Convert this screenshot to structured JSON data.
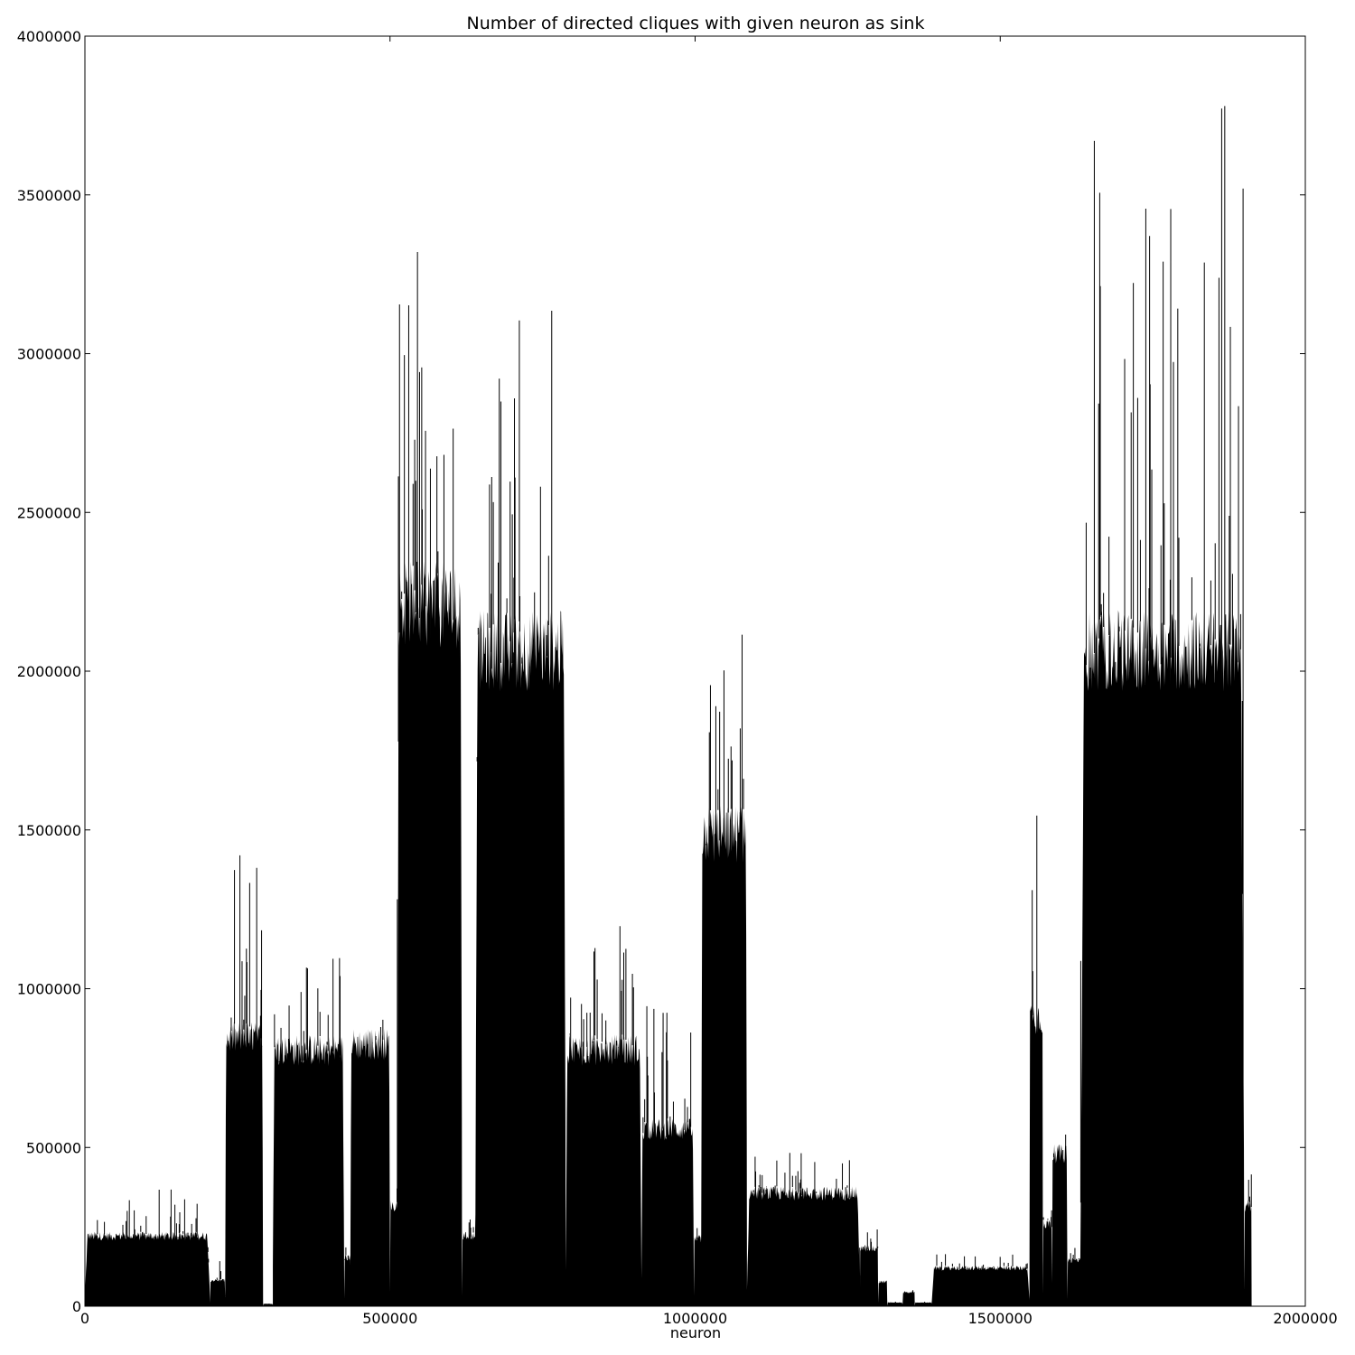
{
  "chart_data": {
    "type": "area",
    "title": "Number of directed cliques with given neuron as sink",
    "xlabel": "neuron",
    "ylabel": "",
    "xlim": [
      0,
      2000000
    ],
    "ylim": [
      0,
      4000000
    ],
    "grid": false,
    "xticks": [
      0,
      500000,
      1000000,
      1500000,
      2000000
    ],
    "xtick_labels": [
      "0",
      "500000",
      "1000000",
      "1500000",
      "2000000"
    ],
    "yticks": [
      0,
      500000,
      1000000,
      1500000,
      2000000,
      2500000,
      3000000,
      3500000,
      4000000
    ],
    "ytick_labels": [
      "0",
      "500000",
      "1000000",
      "1500000",
      "2000000",
      "2500000",
      "3000000",
      "3500000",
      "4000000"
    ],
    "series": [
      {
        "name": "cliques",
        "color": "#000000",
        "segments": [
          {
            "x_start": 0,
            "x_end": 205000,
            "typical": 230000,
            "peak": 370000
          },
          {
            "x_start": 205000,
            "x_end": 230000,
            "typical": 85000,
            "peak": 175000
          },
          {
            "x_start": 230000,
            "x_end": 292000,
            "typical": 880000,
            "peak": 1420000
          },
          {
            "x_start": 292000,
            "x_end": 308000,
            "typical": 8000,
            "peak": 14000
          },
          {
            "x_start": 308000,
            "x_end": 425000,
            "typical": 840000,
            "peak": 1150000
          },
          {
            "x_start": 425000,
            "x_end": 435000,
            "typical": 160000,
            "peak": 190000
          },
          {
            "x_start": 435000,
            "x_end": 500000,
            "typical": 860000,
            "peak": 1110000
          },
          {
            "x_start": 500000,
            "x_end": 512000,
            "typical": 330000,
            "peak": 400000
          },
          {
            "x_start": 512000,
            "x_end": 618000,
            "typical": 2300000,
            "peak": 3320000
          },
          {
            "x_start": 618000,
            "x_end": 640000,
            "typical": 230000,
            "peak": 290000
          },
          {
            "x_start": 640000,
            "x_end": 788000,
            "typical": 2150000,
            "peak": 3135000
          },
          {
            "x_start": 788000,
            "x_end": 912000,
            "typical": 840000,
            "peak": 1235000
          },
          {
            "x_start": 912000,
            "x_end": 998000,
            "typical": 580000,
            "peak": 955000
          },
          {
            "x_start": 998000,
            "x_end": 1010000,
            "typical": 220000,
            "peak": 260000
          },
          {
            "x_start": 1010000,
            "x_end": 1085000,
            "typical": 1550000,
            "peak": 2115000
          },
          {
            "x_start": 1085000,
            "x_end": 1270000,
            "typical": 370000,
            "peak": 490000
          },
          {
            "x_start": 1270000,
            "x_end": 1300000,
            "typical": 190000,
            "peak": 250000
          },
          {
            "x_start": 1300000,
            "x_end": 1315000,
            "typical": 80000,
            "peak": 110000
          },
          {
            "x_start": 1315000,
            "x_end": 1340000,
            "typical": 12000,
            "peak": 15000
          },
          {
            "x_start": 1340000,
            "x_end": 1360000,
            "typical": 45000,
            "peak": 55000
          },
          {
            "x_start": 1360000,
            "x_end": 1388000,
            "typical": 12000,
            "peak": 25000
          },
          {
            "x_start": 1388000,
            "x_end": 1548000,
            "typical": 125000,
            "peak": 165000
          },
          {
            "x_start": 1548000,
            "x_end": 1570000,
            "typical": 950000,
            "peak": 1545000
          },
          {
            "x_start": 1570000,
            "x_end": 1585000,
            "typical": 270000,
            "peak": 360000
          },
          {
            "x_start": 1585000,
            "x_end": 1610000,
            "typical": 500000,
            "peak": 710000
          },
          {
            "x_start": 1610000,
            "x_end": 1632000,
            "typical": 150000,
            "peak": 240000
          },
          {
            "x_start": 1632000,
            "x_end": 1900000,
            "typical": 2150000,
            "peak": 3780000
          },
          {
            "x_start": 1900000,
            "x_end": 1912000,
            "typical": 330000,
            "peak": 450000
          }
        ],
        "notable_peaks": [
          {
            "x": 254000,
            "y": 1420000
          },
          {
            "x": 545000,
            "y": 3320000
          },
          {
            "x": 765000,
            "y": 3135000
          },
          {
            "x": 1077000,
            "y": 2115000
          },
          {
            "x": 1560000,
            "y": 1545000
          },
          {
            "x": 1767000,
            "y": 3290000
          },
          {
            "x": 1868000,
            "y": 3780000
          },
          {
            "x": 1898000,
            "y": 3520000
          }
        ]
      }
    ]
  }
}
